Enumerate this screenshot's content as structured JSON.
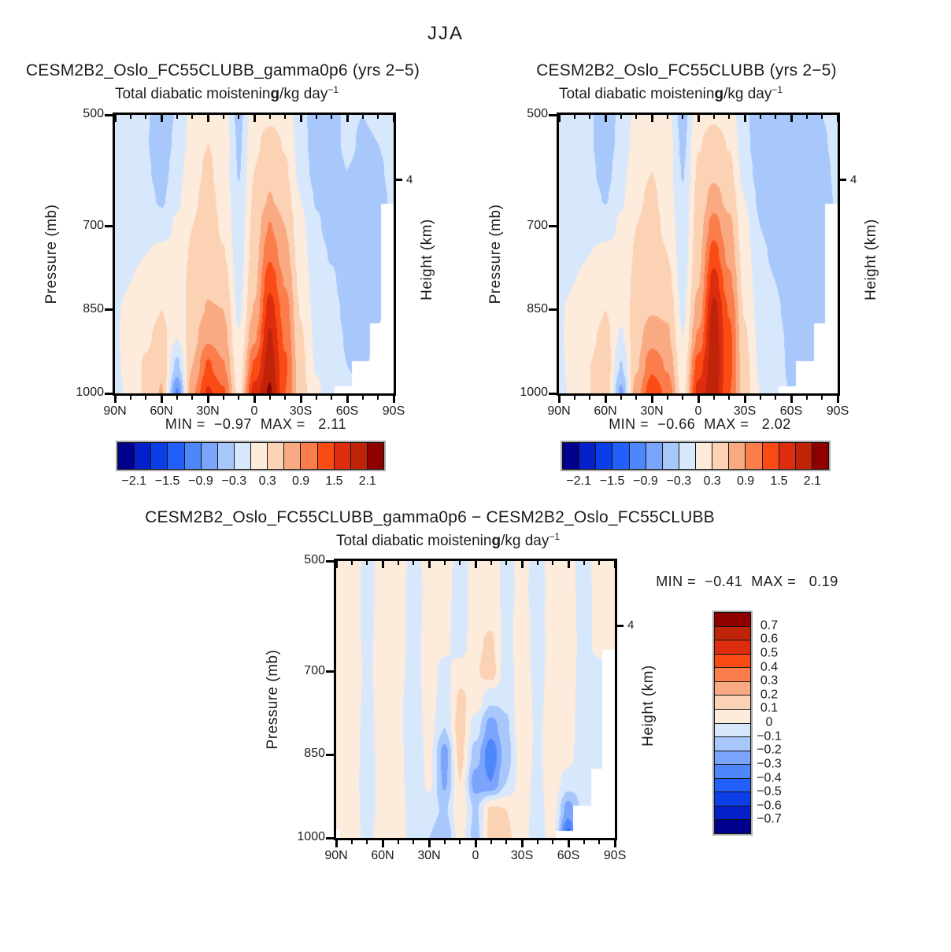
{
  "chart_data": {
    "type": "heatmap",
    "season_title": "JJA",
    "field_subtitle": {
      "pre": "Total diabatic moistenin",
      "overlap_g": "g",
      "units_post": "/kg day",
      "units_sup": "−1"
    },
    "axes": {
      "x_ticks": [
        "90N",
        "60N",
        "30N",
        "0",
        "30S",
        "60S",
        "90S"
      ],
      "x_minor_step_deg": 10,
      "y_ticks": [
        "500",
        "700",
        "850",
        "1000"
      ],
      "y_tick_pressures": [
        500,
        700,
        850,
        1000
      ],
      "y_axis_label": "Pressure (mb)",
      "right_axis_label": "Height (km)",
      "right_tick_label": "4",
      "right_tick_pressure": 617,
      "lat_range": [
        90,
        -90
      ],
      "pressure_range": [
        500,
        1000
      ]
    },
    "palette": [
      "#00008C",
      "#0420C8",
      "#0B3EE6",
      "#2260FC",
      "#4E86FC",
      "#7BA4FC",
      "#A8C8FC",
      "#D8E8FC",
      "#FDEBDC",
      "#FCD2B4",
      "#FAAA82",
      "#FB7D4B",
      "#FB4B14",
      "#DE2D0E",
      "#BF2409",
      "#8E0000"
    ],
    "levels_top": [
      -2.1,
      -1.8,
      -1.5,
      -1.2,
      -0.9,
      -0.6,
      -0.3,
      0,
      0.3,
      0.6,
      0.9,
      1.2,
      1.5,
      1.8,
      2.1
    ],
    "levels_diff": [
      -0.7,
      -0.6,
      -0.5,
      -0.4,
      -0.3,
      -0.2,
      -0.1,
      0,
      0.1,
      0.2,
      0.3,
      0.4,
      0.5,
      0.6,
      0.7
    ],
    "colorbar_top_labels": [
      "−2.1",
      "−1.5",
      "−0.9",
      "−0.3",
      "0.3",
      "0.9",
      "1.5",
      "2.1"
    ],
    "colorbar_diff": {
      "labels": [
        "0.7",
        "0.6",
        "0.5",
        "0.4",
        "0.3",
        "0.2",
        "0.1",
        "0",
        "−0.1",
        "−0.2",
        "−0.3",
        "−0.4",
        "−0.5",
        "−0.6",
        "−0.7"
      ]
    },
    "grid_lats": [
      90,
      80,
      70,
      60,
      50,
      40,
      30,
      20,
      10,
      0,
      -10,
      -20,
      -30,
      -40,
      -50,
      -60,
      -70,
      -80,
      -90
    ],
    "grid_pressures": [
      500,
      550,
      600,
      650,
      700,
      750,
      800,
      850,
      900,
      950,
      1000
    ],
    "mask_steps": [
      [
        -52,
        988
      ],
      [
        -63,
        943
      ],
      [
        -75,
        875
      ],
      [
        -82,
        660
      ]
    ],
    "north_notch": {
      "lat": 87.5,
      "pressure": 985
    },
    "panels": [
      {
        "id": "p1",
        "title": "CESM2B2_Oslo_FC55CLUBB_gamma0p6 (yrs 2−5)",
        "stats_line": "MIN =  −0.97  MAX =   2.11",
        "levels_key": "top",
        "mask_north": false,
        "grid": [
          [
            -0.2,
            -0.2,
            -0.28,
            -0.45,
            -0.28,
            0.1,
            0.24,
            0.15,
            -0.4,
            0.18,
            0.25,
            0.2,
            -0.2,
            -0.45,
            -0.4,
            -0.25,
            -0.3,
            -0.25,
            -0.2
          ],
          [
            -0.18,
            -0.18,
            -0.28,
            -0.5,
            -0.22,
            0.15,
            0.3,
            0.2,
            -0.35,
            0.25,
            0.4,
            0.28,
            -0.15,
            -0.5,
            -0.45,
            -0.22,
            -0.35,
            -0.3,
            -0.2
          ],
          [
            -0.15,
            -0.15,
            -0.25,
            -0.45,
            -0.12,
            0.2,
            0.35,
            0.15,
            -0.32,
            0.3,
            0.48,
            0.34,
            -0.1,
            -0.42,
            -0.5,
            -0.3,
            -0.4,
            -0.35,
            -0.22
          ],
          [
            -0.12,
            -0.15,
            -0.2,
            -0.35,
            -0.05,
            0.25,
            0.4,
            0.2,
            -0.26,
            0.35,
            0.62,
            0.45,
            0.0,
            -0.32,
            -0.46,
            -0.36,
            -0.46,
            -0.4,
            -0.25
          ],
          [
            -0.1,
            -0.1,
            -0.1,
            -0.15,
            0.05,
            0.3,
            0.45,
            0.25,
            -0.2,
            0.4,
            0.92,
            0.6,
            0.08,
            -0.26,
            -0.4,
            -0.42,
            -0.5,
            -0.44,
            -0.26
          ],
          [
            -0.1,
            -0.05,
            0.0,
            0.1,
            0.1,
            0.35,
            0.5,
            0.32,
            -0.16,
            0.45,
            1.15,
            0.7,
            0.14,
            -0.2,
            -0.32,
            -0.46,
            -0.52,
            -0.42,
            -0.26
          ],
          [
            -0.06,
            0.0,
            0.1,
            0.22,
            0.14,
            0.4,
            0.55,
            0.45,
            -0.12,
            0.52,
            1.42,
            0.88,
            0.2,
            -0.15,
            -0.26,
            -0.42,
            -0.46,
            -0.36,
            -0.25
          ],
          [
            -0.02,
            0.05,
            0.16,
            0.3,
            0.1,
            0.45,
            0.62,
            0.6,
            -0.06,
            0.62,
            1.65,
            1.05,
            0.28,
            -0.1,
            -0.22,
            -0.36,
            -0.42,
            -0.32,
            -0.22
          ],
          [
            -0.02,
            0.1,
            0.25,
            0.42,
            0.0,
            0.5,
            0.85,
            0.72,
            0.02,
            0.85,
            1.85,
            1.15,
            0.34,
            -0.06,
            -0.2,
            -0.32,
            -0.36,
            -0.28,
            -0.22
          ],
          [
            -0.06,
            0.15,
            0.34,
            0.55,
            -0.38,
            0.6,
            1.25,
            0.92,
            0.1,
            1.25,
            2.0,
            1.25,
            0.4,
            -0.02,
            -0.16,
            -0.3,
            -0.32,
            -0.26,
            -0.22
          ],
          [
            -0.1,
            0.1,
            0.36,
            0.62,
            -0.95,
            0.85,
            1.55,
            1.25,
            0.2,
            1.65,
            2.15,
            1.2,
            0.45,
            0.05,
            -0.12,
            -0.28,
            -0.3,
            -0.28,
            -0.22
          ]
        ]
      },
      {
        "id": "p2",
        "title": "CESM2B2_Oslo_FC55CLUBB (yrs 2−5)",
        "stats_line": "MIN =  −0.66  MAX =   2.02",
        "levels_key": "top",
        "mask_north": false,
        "grid": [
          [
            -0.2,
            -0.2,
            -0.28,
            -0.42,
            -0.25,
            0.1,
            0.2,
            0.1,
            -0.45,
            0.2,
            0.26,
            0.18,
            -0.25,
            -0.5,
            -0.45,
            -0.3,
            -0.35,
            -0.3,
            -0.2
          ],
          [
            -0.18,
            -0.18,
            -0.28,
            -0.46,
            -0.2,
            0.15,
            0.26,
            0.15,
            -0.38,
            0.28,
            0.42,
            0.28,
            -0.2,
            -0.55,
            -0.5,
            -0.32,
            -0.4,
            -0.35,
            -0.2
          ],
          [
            -0.15,
            -0.15,
            -0.25,
            -0.42,
            -0.1,
            0.2,
            0.3,
            0.12,
            -0.32,
            0.34,
            0.52,
            0.38,
            -0.12,
            -0.46,
            -0.55,
            -0.38,
            -0.45,
            -0.4,
            -0.24
          ],
          [
            -0.12,
            -0.15,
            -0.2,
            -0.32,
            -0.04,
            0.25,
            0.36,
            0.16,
            -0.27,
            0.4,
            0.72,
            0.5,
            0.0,
            -0.36,
            -0.5,
            -0.44,
            -0.5,
            -0.44,
            -0.26
          ],
          [
            -0.1,
            -0.1,
            -0.1,
            -0.14,
            0.05,
            0.3,
            0.42,
            0.22,
            -0.21,
            0.45,
            1.05,
            0.68,
            0.08,
            -0.3,
            -0.44,
            -0.46,
            -0.52,
            -0.46,
            -0.28
          ],
          [
            -0.1,
            -0.05,
            0.0,
            0.1,
            0.09,
            0.34,
            0.46,
            0.3,
            -0.17,
            0.5,
            1.35,
            0.8,
            0.14,
            -0.24,
            -0.36,
            -0.5,
            -0.55,
            -0.45,
            -0.28
          ],
          [
            -0.06,
            0.0,
            0.1,
            0.2,
            0.12,
            0.38,
            0.52,
            0.4,
            -0.13,
            0.58,
            1.65,
            0.98,
            0.2,
            -0.18,
            -0.3,
            -0.46,
            -0.5,
            -0.4,
            -0.28
          ],
          [
            -0.02,
            0.05,
            0.15,
            0.3,
            0.08,
            0.44,
            0.58,
            0.55,
            -0.07,
            0.72,
            1.92,
            1.18,
            0.28,
            -0.13,
            -0.26,
            -0.4,
            -0.46,
            -0.36,
            -0.25
          ],
          [
            -0.02,
            0.1,
            0.24,
            0.4,
            -0.04,
            0.5,
            0.78,
            0.66,
            0.0,
            0.95,
            2.0,
            1.28,
            0.34,
            -0.09,
            -0.22,
            -0.36,
            -0.4,
            -0.32,
            -0.25
          ],
          [
            -0.06,
            0.14,
            0.3,
            0.5,
            -0.32,
            0.56,
            1.12,
            0.86,
            0.1,
            1.35,
            2.02,
            1.3,
            0.4,
            -0.05,
            -0.17,
            -0.36,
            -0.36,
            -0.3,
            -0.25
          ],
          [
            -0.1,
            0.1,
            0.3,
            0.56,
            -0.68,
            0.78,
            1.42,
            1.12,
            0.16,
            1.62,
            2.0,
            1.22,
            0.45,
            0.0,
            -0.12,
            -0.32,
            -0.32,
            -0.3,
            -0.25
          ]
        ]
      },
      {
        "id": "p3",
        "title": "CESM2B2_Oslo_FC55CLUBB_gamma0p6 − CESM2B2_Oslo_FC55CLUBB",
        "stats_line": "MIN =  −0.41  MAX =   0.19",
        "levels_key": "diff",
        "mask_north": true,
        "grid": [
          [
            0.06,
            0.07,
            -0.04,
            0.05,
            0.07,
            -0.05,
            0.05,
            0.06,
            -0.06,
            0.05,
            0.07,
            -0.05,
            0.05,
            -0.06,
            0.06,
            0.05,
            -0.05,
            0.06,
            0.05
          ],
          [
            0.06,
            0.06,
            -0.05,
            0.06,
            0.06,
            -0.06,
            0.04,
            0.05,
            -0.06,
            0.06,
            0.08,
            -0.05,
            0.04,
            -0.06,
            0.05,
            0.06,
            -0.06,
            0.05,
            0.05
          ],
          [
            0.05,
            0.06,
            -0.05,
            0.07,
            0.05,
            -0.06,
            0.05,
            0.04,
            -0.07,
            0.07,
            0.08,
            -0.04,
            0.05,
            -0.05,
            0.05,
            0.07,
            -0.06,
            0.05,
            0.04
          ],
          [
            0.05,
            0.07,
            -0.04,
            0.08,
            0.04,
            -0.05,
            0.06,
            0.03,
            -0.06,
            0.08,
            0.12,
            -0.05,
            0.06,
            -0.05,
            0.04,
            0.08,
            -0.05,
            0.04,
            0.04
          ],
          [
            0.04,
            0.08,
            -0.03,
            0.08,
            0.03,
            -0.05,
            0.06,
            -0.04,
            0.06,
            0.09,
            0.15,
            -0.06,
            0.07,
            -0.04,
            0.04,
            0.07,
            -0.06,
            -0.04,
            0.03
          ],
          [
            0.04,
            0.07,
            -0.04,
            0.07,
            0.02,
            -0.06,
            0.05,
            -0.06,
            0.12,
            0.06,
            -0.08,
            -0.08,
            0.08,
            -0.03,
            0.05,
            0.06,
            -0.07,
            -0.05,
            0.03
          ],
          [
            0.03,
            0.06,
            -0.05,
            0.06,
            0.02,
            -0.07,
            0.04,
            -0.1,
            0.16,
            -0.05,
            -0.25,
            -0.12,
            0.08,
            -0.02,
            0.05,
            0.05,
            -0.08,
            -0.05,
            0.03
          ],
          [
            0.03,
            0.05,
            -0.05,
            0.05,
            0.03,
            -0.08,
            0.03,
            -0.25,
            0.14,
            -0.15,
            -0.38,
            -0.15,
            0.06,
            -0.02,
            0.06,
            0.04,
            -0.08,
            -0.06,
            0.02
          ],
          [
            0.02,
            0.05,
            -0.06,
            0.05,
            0.04,
            -0.08,
            0.02,
            -0.22,
            0.1,
            -0.25,
            -0.3,
            -0.1,
            0.05,
            -0.03,
            0.06,
            -0.05,
            -0.07,
            -0.06,
            0.02
          ],
          [
            0.02,
            0.06,
            -0.06,
            0.06,
            0.05,
            -0.07,
            -0.05,
            -0.12,
            0.08,
            -0.12,
            0.12,
            0.1,
            0.04,
            -0.04,
            0.05,
            -0.25,
            -0.06,
            -0.05,
            0.02
          ],
          [
            0.02,
            0.08,
            -0.05,
            0.08,
            0.06,
            -0.06,
            -0.1,
            -0.2,
            0.05,
            -0.15,
            0.15,
            0.12,
            0.04,
            -0.05,
            0.04,
            -0.45,
            -0.05,
            -0.05,
            0.02
          ]
        ]
      }
    ]
  }
}
